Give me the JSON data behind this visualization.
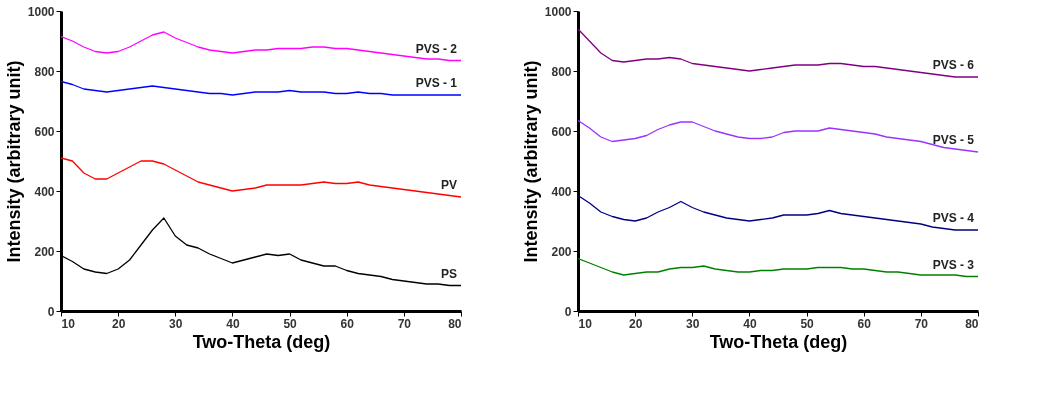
{
  "chart_data": [
    {
      "type": "line",
      "xlabel": "Two-Theta (deg)",
      "ylabel": "Intensity (arbitrary unit)",
      "xlim": [
        10,
        80
      ],
      "ylim": [
        0,
        1000
      ],
      "xticks": [
        10,
        20,
        30,
        40,
        50,
        60,
        70,
        80
      ],
      "yticks": [
        0,
        200,
        400,
        600,
        800,
        1000
      ],
      "grid": false,
      "x": [
        10,
        12,
        14,
        16,
        18,
        20,
        22,
        24,
        26,
        28,
        30,
        32,
        34,
        36,
        38,
        40,
        42,
        44,
        46,
        48,
        50,
        52,
        54,
        56,
        58,
        60,
        62,
        64,
        66,
        68,
        70,
        72,
        74,
        76,
        78,
        80
      ],
      "series": [
        {
          "name": "PS",
          "color": "#000000",
          "values": [
            185,
            165,
            140,
            130,
            125,
            140,
            170,
            220,
            270,
            310,
            250,
            220,
            210,
            190,
            175,
            160,
            170,
            180,
            190,
            185,
            190,
            170,
            160,
            150,
            150,
            135,
            125,
            120,
            115,
            105,
            100,
            95,
            90,
            90,
            85,
            85
          ]
        },
        {
          "name": "PV",
          "color": "#ff0000",
          "values": [
            510,
            500,
            460,
            440,
            440,
            460,
            480,
            500,
            500,
            490,
            470,
            450,
            430,
            420,
            410,
            400,
            405,
            410,
            420,
            420,
            420,
            420,
            425,
            430,
            425,
            425,
            430,
            420,
            415,
            410,
            405,
            400,
            395,
            390,
            385,
            380
          ]
        },
        {
          "name": "PVS - 1",
          "color": "#0000ff",
          "values": [
            765,
            755,
            740,
            735,
            730,
            735,
            740,
            745,
            750,
            745,
            740,
            735,
            730,
            725,
            725,
            720,
            725,
            730,
            730,
            730,
            735,
            730,
            730,
            730,
            725,
            725,
            730,
            725,
            725,
            720,
            720,
            720,
            720,
            720,
            720,
            720
          ]
        },
        {
          "name": "PVS - 2",
          "color": "#ff00ff",
          "values": [
            915,
            900,
            880,
            865,
            860,
            865,
            880,
            900,
            920,
            930,
            910,
            895,
            880,
            870,
            865,
            860,
            865,
            870,
            870,
            875,
            875,
            875,
            880,
            880,
            875,
            875,
            870,
            865,
            860,
            855,
            850,
            845,
            840,
            840,
            835,
            835
          ]
        }
      ]
    },
    {
      "type": "line",
      "xlabel": "Two-Theta (deg)",
      "ylabel": "Intensity (arbitrary unit)",
      "xlim": [
        10,
        80
      ],
      "ylim": [
        0,
        1000
      ],
      "xticks": [
        10,
        20,
        30,
        40,
        50,
        60,
        70,
        80
      ],
      "yticks": [
        0,
        200,
        400,
        600,
        800,
        1000
      ],
      "grid": false,
      "x": [
        10,
        12,
        14,
        16,
        18,
        20,
        22,
        24,
        26,
        28,
        30,
        32,
        34,
        36,
        38,
        40,
        42,
        44,
        46,
        48,
        50,
        52,
        54,
        56,
        58,
        60,
        62,
        64,
        66,
        68,
        70,
        72,
        74,
        76,
        78,
        80
      ],
      "series": [
        {
          "name": "PVS - 3",
          "color": "#008000",
          "values": [
            175,
            160,
            145,
            130,
            120,
            125,
            130,
            130,
            140,
            145,
            145,
            150,
            140,
            135,
            130,
            130,
            135,
            135,
            140,
            140,
            140,
            145,
            145,
            145,
            140,
            140,
            135,
            130,
            130,
            125,
            120,
            120,
            120,
            120,
            115,
            115
          ]
        },
        {
          "name": "PVS - 4",
          "color": "#000080",
          "values": [
            385,
            360,
            330,
            315,
            305,
            300,
            310,
            330,
            345,
            365,
            345,
            330,
            320,
            310,
            305,
            300,
            305,
            310,
            320,
            320,
            320,
            325,
            335,
            325,
            320,
            315,
            310,
            305,
            300,
            295,
            290,
            280,
            275,
            270,
            270,
            270
          ]
        },
        {
          "name": "PVS - 5",
          "color": "#9933ff",
          "values": [
            635,
            610,
            580,
            565,
            570,
            575,
            585,
            605,
            620,
            630,
            630,
            615,
            600,
            590,
            580,
            575,
            575,
            580,
            595,
            600,
            600,
            600,
            610,
            605,
            600,
            595,
            590,
            580,
            575,
            570,
            565,
            555,
            545,
            540,
            535,
            530
          ]
        },
        {
          "name": "PVS - 6",
          "color": "#800080",
          "values": [
            940,
            900,
            860,
            835,
            830,
            835,
            840,
            840,
            845,
            840,
            825,
            820,
            815,
            810,
            805,
            800,
            805,
            810,
            815,
            820,
            820,
            820,
            825,
            825,
            820,
            815,
            815,
            810,
            805,
            800,
            795,
            790,
            785,
            780,
            780,
            780
          ]
        }
      ]
    }
  ]
}
